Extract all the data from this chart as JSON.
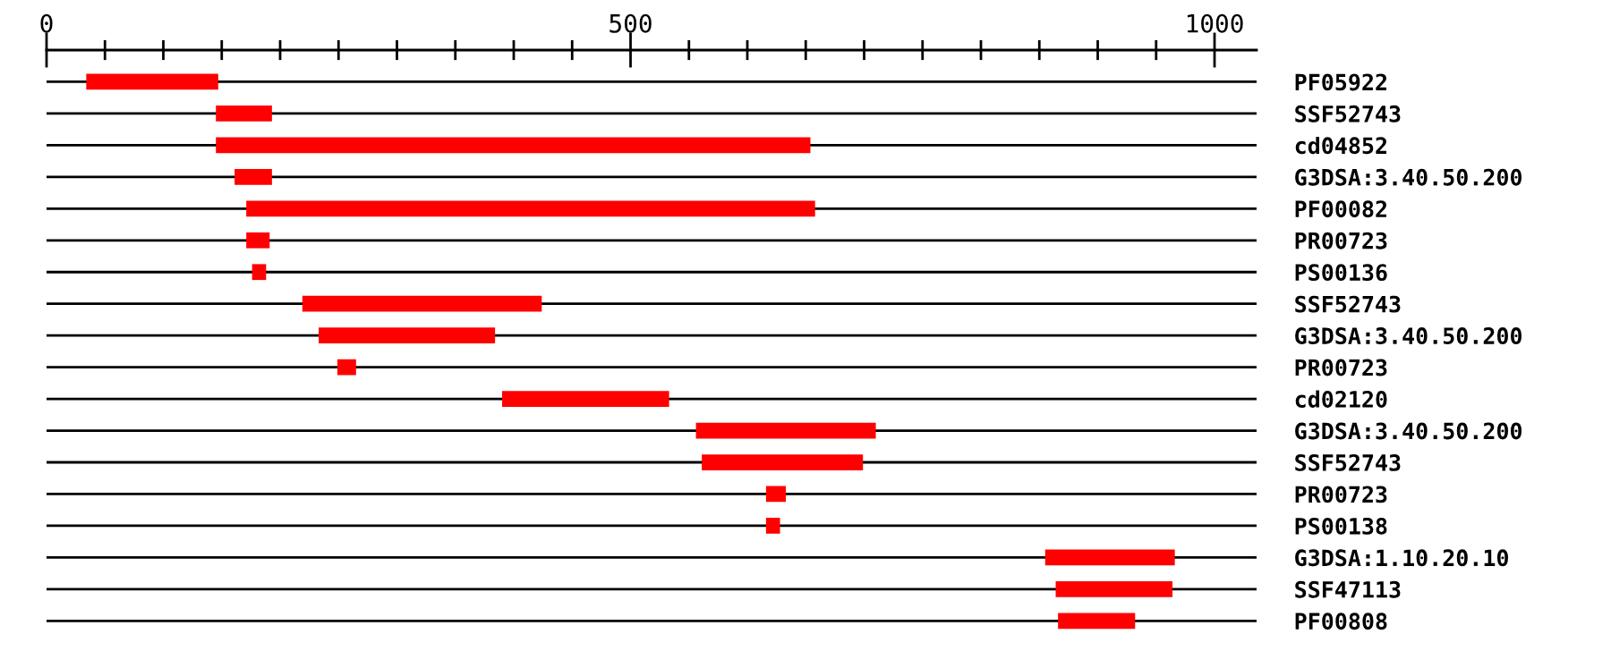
{
  "chart_data": {
    "type": "bar",
    "orientation": "horizontal",
    "color": "#ff0000",
    "grid": "y",
    "legend": false,
    "categories": [
      "PF05922",
      "SSF52743",
      "cd04852",
      "G3DSA:3.40.50.200",
      "PF00082",
      "PR00723",
      "PS00136",
      "SSF52743",
      "G3DSA:3.40.50.200",
      "PR00723",
      "cd02120",
      "G3DSA:3.40.50.200",
      "SSF52743",
      "PR00723",
      "PS00138",
      "G3DSA:1.10.20.10",
      "SSF47113",
      "PF00808"
    ],
    "base": [
      34,
      145,
      145,
      161,
      171,
      171,
      176,
      219,
      233,
      249,
      390,
      556,
      561,
      616,
      616,
      855,
      864,
      866
    ],
    "values": [
      113,
      48,
      509,
      32,
      487,
      20,
      12,
      205,
      151,
      16,
      143,
      154,
      138,
      17,
      12,
      111,
      100,
      66
    ],
    "xlim": [
      0,
      1036
    ],
    "xticks": [
      0,
      {
        "value": 50,
        "label": null
      },
      {
        "value": 100,
        "label": null
      },
      {
        "value": 150,
        "label": null
      },
      {
        "value": 200,
        "label": null
      },
      {
        "value": 250,
        "label": null
      },
      {
        "value": 300,
        "label": null
      },
      {
        "value": 350,
        "label": null
      },
      {
        "value": 400,
        "label": null
      },
      {
        "value": 450,
        "label": null
      },
      500,
      {
        "value": 550,
        "label": null
      },
      {
        "value": 600,
        "label": null
      },
      {
        "value": 650,
        "label": null
      },
      {
        "value": 700,
        "label": null
      },
      {
        "value": 750,
        "label": null
      },
      {
        "value": 800,
        "label": null
      },
      {
        "value": 850,
        "label": null
      },
      {
        "value": 900,
        "label": null
      },
      {
        "value": 950,
        "label": null
      },
      1000
    ]
  }
}
